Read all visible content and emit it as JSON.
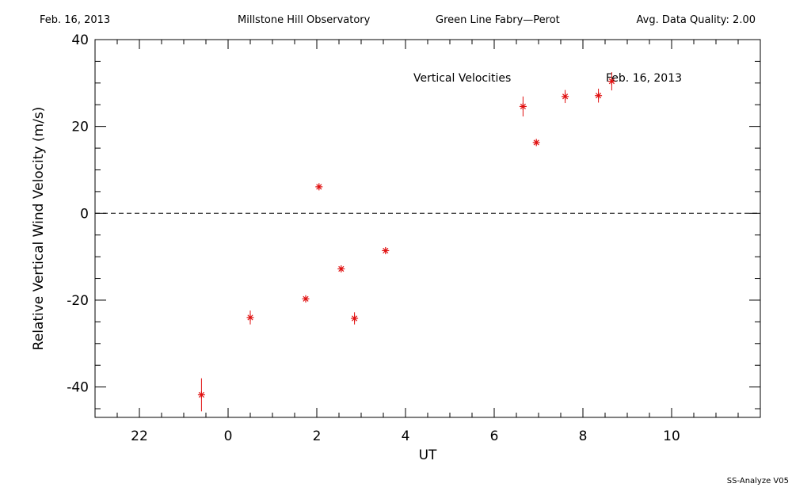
{
  "header": {
    "date": "Feb. 16, 2013",
    "observatory": "Millstone Hill Observatory",
    "instrument": "Green Line Fabry—Perot",
    "quality": "Avg. Data Quality: 2.00"
  },
  "footer": {
    "version": "SS-Analyze V05"
  },
  "chart_data": {
    "type": "scatter",
    "xlabel": "UT",
    "ylabel": "Relative Vertical Wind Velocity (m/s)",
    "xlim": [
      21.0,
      36.0
    ],
    "ylim": [
      -47,
      40
    ],
    "x_ticks": [
      22,
      24,
      26,
      28,
      30,
      32,
      34
    ],
    "x_tick_labels": [
      "22",
      "0",
      "2",
      "4",
      "6",
      "8",
      "10"
    ],
    "y_ticks": [
      -40,
      -20,
      0,
      20,
      40
    ],
    "y_tick_labels": [
      "-40",
      "-20",
      "0",
      "20",
      "40"
    ],
    "annotations": [
      "Vertical Velocities",
      "Feb. 16, 2013"
    ],
    "zero_line": "dashed",
    "marker_color": "#e01010",
    "series": [
      {
        "x": [
          23.4,
          24.5,
          25.75,
          26.05,
          26.55,
          26.85,
          27.55,
          30.65,
          30.95,
          31.6,
          32.35,
          32.65
        ],
        "y": [
          -41.8,
          -24.0,
          -19.7,
          6.1,
          -12.8,
          -24.2,
          -8.6,
          24.6,
          16.3,
          26.9,
          27.1,
          30.4
        ],
        "yerr": [
          3.8,
          1.6,
          0.8,
          0.4,
          0.4,
          1.4,
          0.4,
          2.3,
          0.6,
          1.5,
          1.6,
          2.1
        ]
      }
    ]
  }
}
